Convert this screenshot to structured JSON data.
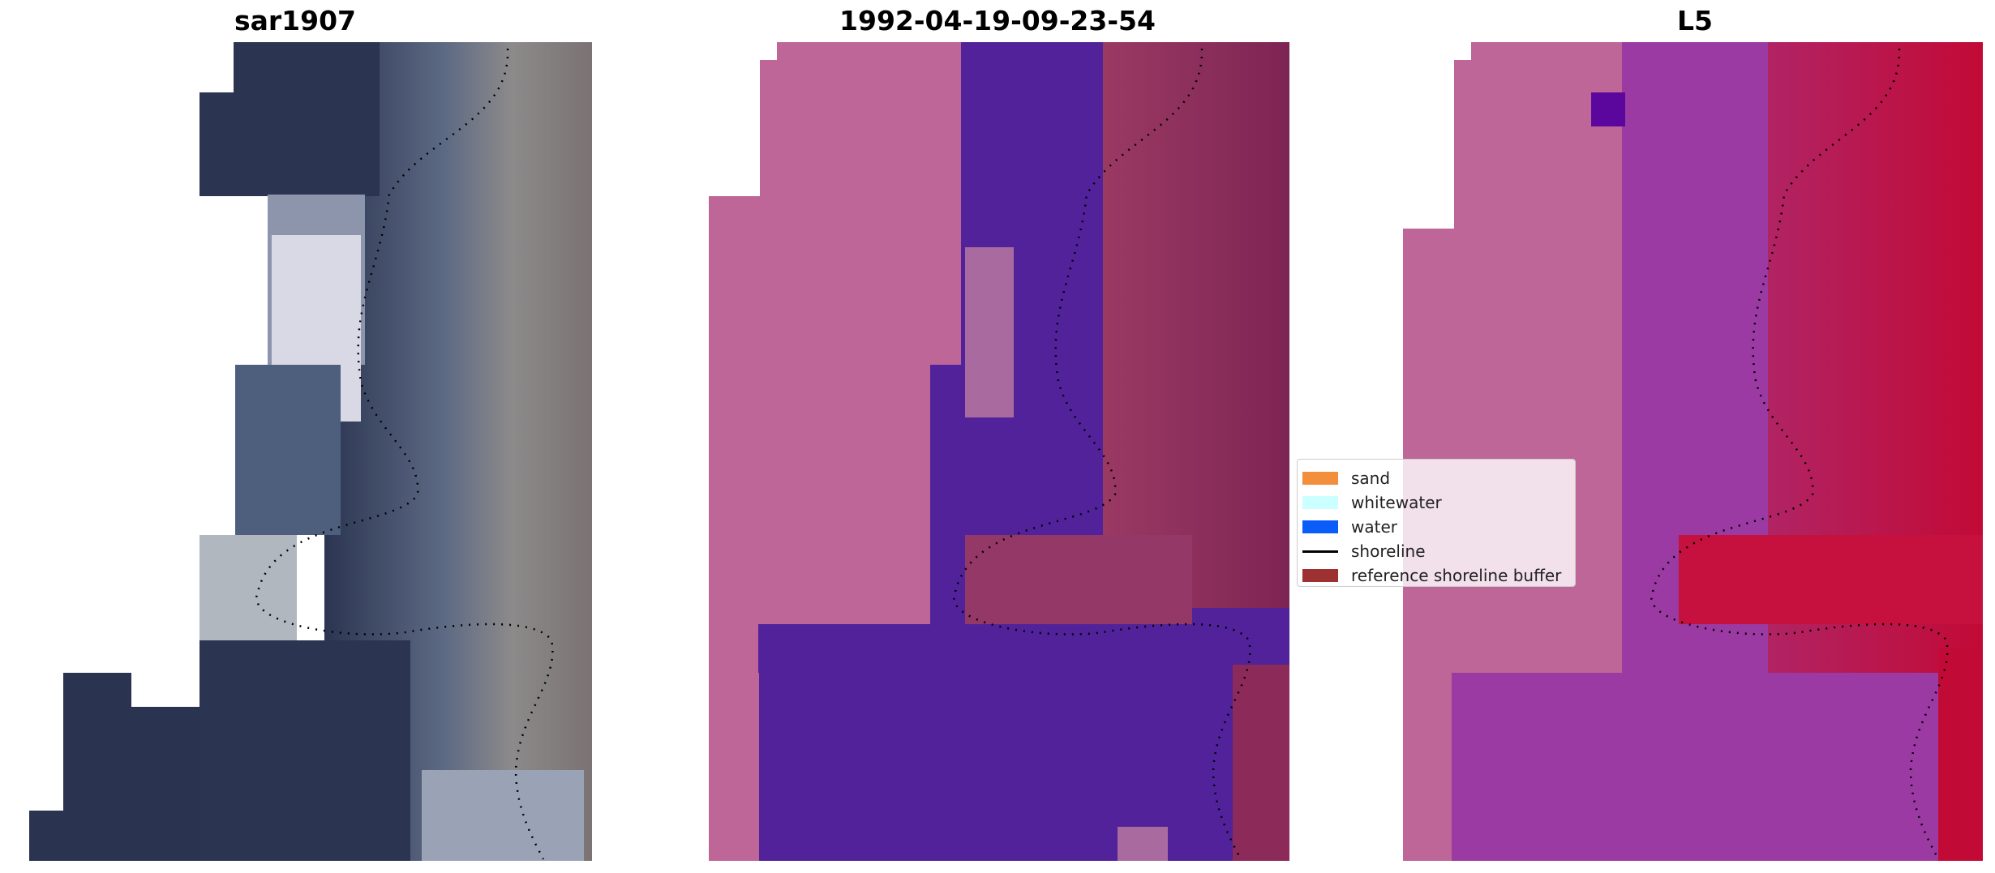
{
  "panels": [
    {
      "title": "sar1907"
    },
    {
      "title": "1992-04-19-09-23-54"
    },
    {
      "title": "L5"
    }
  ],
  "legend": {
    "items": [
      {
        "label": "sand",
        "color": "#f28e3c",
        "kind": "patch"
      },
      {
        "label": "whitewater",
        "color": "#ccffff",
        "kind": "patch"
      },
      {
        "label": "water",
        "color": "#0b5dfa",
        "kind": "patch"
      },
      {
        "label": "shoreline",
        "color": "#000000",
        "kind": "line"
      },
      {
        "label": "reference shoreline buffer",
        "color": "#9e3131",
        "kind": "patch"
      }
    ]
  },
  "colors": {
    "rgb_water_dark": "#2a3450",
    "class_sand_overlay": "#bd6697",
    "class_water_overlay": "#51229a",
    "class_buffer_overlay": "#8c2a5a",
    "index_low": "#5b079e",
    "index_high": "#c4092f"
  }
}
